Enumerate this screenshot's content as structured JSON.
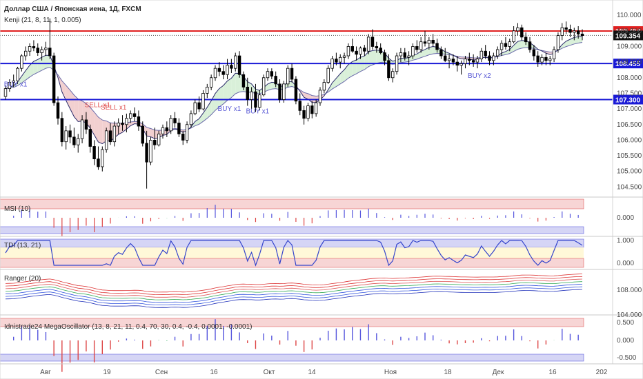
{
  "chart_data": {
    "type": "candlestick",
    "title": "Доллар США / Японская иена, 1Д, FXCM",
    "indicator_label": "Kenji (21, 8, 11, 1, 0.005)",
    "x_ticks": [
      "Авг",
      "19",
      "Сен",
      "16",
      "Окт",
      "14",
      "Ноя",
      "18",
      "Дек",
      "16",
      "202"
    ],
    "y_ticks": [
      "104.500",
      "105.000",
      "105.500",
      "106.000",
      "106.500",
      "107.000",
      "107.500",
      "108.000",
      "108.500",
      "109.000",
      "109.500",
      "110.000"
    ],
    "ylim": [
      104.2,
      110.4
    ],
    "levels": [
      {
        "value": 109.494,
        "label": "109.494",
        "color": "#e02020"
      },
      {
        "value": 108.455,
        "label": "108.455",
        "color": "#1a1ad6"
      },
      {
        "value": 107.3,
        "label": "107.300",
        "color": "#1a1ad6"
      }
    ],
    "last_price": {
      "value": 109.354,
      "label": "109.354"
    },
    "signals": [
      {
        "text": "BUY x1",
        "at": 2,
        "price": 107.72,
        "color": "#5a5ad6"
      },
      {
        "text": "SELL x1",
        "at": 22,
        "price": 107.06,
        "color": "#e05050"
      },
      {
        "text": "SELL x1",
        "at": 26,
        "price": 106.98,
        "color": "#e05050"
      },
      {
        "text": "BUY x1",
        "at": 55,
        "price": 106.94,
        "color": "#5a5ad6"
      },
      {
        "text": "BUY x1",
        "at": 62,
        "price": 106.86,
        "color": "#5a5ad6"
      },
      {
        "text": "BUY x2",
        "at": 117,
        "price": 108.0,
        "color": "#5a5ad6"
      }
    ],
    "candles": [
      [
        107.4,
        107.75,
        107.3,
        107.65
      ],
      [
        107.65,
        107.95,
        107.55,
        107.85
      ],
      [
        107.85,
        108.1,
        107.7,
        107.9
      ],
      [
        107.9,
        108.35,
        107.8,
        108.3
      ],
      [
        108.3,
        108.75,
        108.2,
        108.7
      ],
      [
        108.7,
        109.0,
        108.55,
        108.85
      ],
      [
        108.85,
        109.1,
        108.7,
        109.0
      ],
      [
        109.0,
        109.2,
        108.85,
        108.95
      ],
      [
        108.95,
        109.1,
        108.7,
        108.8
      ],
      [
        108.8,
        109.0,
        108.55,
        108.9
      ],
      [
        108.9,
        109.15,
        108.7,
        108.95
      ],
      [
        108.95,
        109.9,
        108.6,
        108.7
      ],
      [
        108.7,
        108.8,
        107.1,
        107.2
      ],
      [
        107.2,
        107.4,
        106.5,
        106.7
      ],
      [
        106.7,
        106.9,
        105.8,
        105.95
      ],
      [
        105.95,
        106.45,
        105.7,
        106.3
      ],
      [
        106.3,
        106.5,
        105.9,
        106.1
      ],
      [
        106.1,
        106.4,
        105.75,
        105.85
      ],
      [
        105.85,
        106.2,
        105.6,
        106.05
      ],
      [
        106.05,
        106.8,
        105.9,
        106.65
      ],
      [
        106.65,
        106.9,
        106.2,
        106.35
      ],
      [
        106.35,
        106.5,
        105.6,
        105.8
      ],
      [
        105.8,
        106.0,
        105.2,
        105.4
      ],
      [
        105.4,
        105.8,
        105.05,
        105.15
      ],
      [
        105.15,
        105.8,
        105.0,
        105.7
      ],
      [
        105.7,
        106.4,
        105.6,
        106.3
      ],
      [
        106.3,
        106.55,
        105.85,
        105.95
      ],
      [
        105.95,
        106.6,
        105.8,
        106.45
      ],
      [
        106.45,
        106.7,
        106.2,
        106.55
      ],
      [
        106.55,
        106.8,
        106.3,
        106.5
      ],
      [
        106.5,
        106.85,
        106.25,
        106.7
      ],
      [
        106.7,
        106.95,
        106.55,
        106.85
      ],
      [
        106.85,
        107.05,
        106.6,
        106.75
      ],
      [
        106.75,
        106.95,
        106.3,
        106.45
      ],
      [
        106.45,
        106.6,
        105.8,
        105.9
      ],
      [
        105.9,
        106.3,
        104.45,
        105.3
      ],
      [
        105.3,
        106.1,
        105.2,
        106.0
      ],
      [
        106.0,
        106.4,
        105.7,
        105.85
      ],
      [
        105.85,
        106.3,
        105.8,
        106.2
      ],
      [
        106.2,
        106.5,
        106.05,
        106.4
      ],
      [
        106.4,
        106.6,
        106.1,
        106.3
      ],
      [
        106.3,
        106.8,
        106.2,
        106.7
      ],
      [
        106.7,
        106.9,
        106.4,
        106.55
      ],
      [
        106.55,
        106.7,
        106.1,
        106.2
      ],
      [
        106.2,
        106.3,
        105.85,
        106.0
      ],
      [
        106.0,
        106.6,
        105.9,
        106.5
      ],
      [
        106.5,
        106.95,
        106.4,
        106.85
      ],
      [
        106.85,
        107.3,
        106.8,
        107.2
      ],
      [
        107.2,
        107.4,
        106.9,
        107.0
      ],
      [
        107.0,
        107.6,
        106.95,
        107.5
      ],
      [
        107.5,
        107.8,
        107.35,
        107.7
      ],
      [
        107.7,
        108.1,
        107.6,
        108.0
      ],
      [
        108.0,
        108.4,
        107.9,
        108.3
      ],
      [
        108.3,
        108.5,
        108.05,
        108.2
      ],
      [
        108.2,
        108.4,
        107.95,
        108.1
      ],
      [
        108.1,
        108.6,
        107.95,
        108.4
      ],
      [
        108.4,
        108.6,
        108.15,
        108.3
      ],
      [
        108.3,
        108.8,
        108.2,
        108.7
      ],
      [
        108.7,
        108.85,
        108.0,
        108.1
      ],
      [
        108.1,
        108.2,
        107.6,
        107.7
      ],
      [
        107.7,
        108.0,
        107.1,
        107.3
      ],
      [
        107.3,
        107.7,
        107.0,
        107.55
      ],
      [
        107.55,
        107.8,
        106.9,
        107.05
      ],
      [
        107.05,
        107.6,
        106.95,
        107.45
      ],
      [
        107.45,
        108.1,
        107.4,
        108.0
      ],
      [
        108.0,
        108.3,
        107.9,
        108.2
      ],
      [
        108.2,
        108.3,
        107.95,
        108.05
      ],
      [
        108.05,
        108.2,
        107.7,
        107.8
      ],
      [
        107.8,
        107.95,
        107.2,
        107.3
      ],
      [
        107.3,
        107.9,
        107.2,
        107.8
      ],
      [
        107.8,
        108.4,
        107.7,
        108.3
      ],
      [
        108.3,
        108.45,
        107.85,
        107.95
      ],
      [
        107.95,
        108.05,
        107.15,
        107.25
      ],
      [
        107.25,
        107.5,
        106.8,
        106.95
      ],
      [
        106.95,
        107.1,
        106.5,
        106.7
      ],
      [
        106.7,
        107.2,
        106.6,
        107.1
      ],
      [
        107.1,
        107.25,
        106.7,
        106.85
      ],
      [
        106.85,
        107.3,
        106.75,
        107.2
      ],
      [
        107.2,
        107.7,
        107.1,
        107.6
      ],
      [
        107.6,
        107.95,
        107.5,
        107.85
      ],
      [
        107.85,
        108.4,
        107.8,
        108.3
      ],
      [
        108.3,
        108.7,
        108.2,
        108.6
      ],
      [
        108.6,
        108.8,
        108.4,
        108.5
      ],
      [
        108.5,
        108.75,
        108.3,
        108.65
      ],
      [
        108.65,
        108.8,
        108.45,
        108.7
      ],
      [
        108.7,
        109.1,
        108.6,
        109.0
      ],
      [
        109.0,
        109.25,
        108.8,
        108.85
      ],
      [
        108.85,
        109.0,
        108.55,
        108.75
      ],
      [
        108.75,
        109.0,
        108.6,
        108.95
      ],
      [
        108.95,
        109.05,
        108.7,
        108.85
      ],
      [
        108.85,
        109.4,
        108.75,
        109.3
      ],
      [
        109.3,
        109.55,
        108.9,
        109.0
      ],
      [
        109.0,
        109.15,
        108.8,
        108.95
      ],
      [
        108.95,
        109.1,
        108.75,
        108.8
      ],
      [
        108.8,
        108.9,
        108.4,
        108.55
      ],
      [
        108.55,
        108.75,
        107.9,
        108.0
      ],
      [
        108.0,
        108.3,
        107.85,
        108.2
      ],
      [
        108.2,
        108.8,
        108.1,
        108.7
      ],
      [
        108.7,
        108.95,
        108.5,
        108.8
      ],
      [
        108.8,
        108.95,
        108.55,
        108.65
      ],
      [
        108.65,
        108.85,
        108.4,
        108.7
      ],
      [
        108.7,
        109.1,
        108.6,
        109.0
      ],
      [
        109.0,
        109.2,
        108.8,
        108.9
      ],
      [
        108.9,
        109.3,
        108.8,
        109.15
      ],
      [
        109.15,
        109.5,
        109.0,
        109.1
      ],
      [
        109.1,
        109.3,
        108.9,
        109.2
      ],
      [
        109.2,
        109.4,
        109.0,
        109.1
      ],
      [
        109.1,
        109.25,
        108.8,
        108.9
      ],
      [
        108.9,
        109.0,
        108.6,
        108.7
      ],
      [
        108.7,
        108.95,
        108.5,
        108.55
      ],
      [
        108.55,
        108.75,
        108.3,
        108.6
      ],
      [
        108.6,
        108.75,
        108.4,
        108.5
      ],
      [
        108.5,
        108.7,
        108.2,
        108.4
      ],
      [
        108.4,
        108.55,
        108.1,
        108.45
      ],
      [
        108.45,
        108.7,
        108.3,
        108.6
      ],
      [
        108.6,
        108.8,
        108.4,
        108.55
      ],
      [
        108.55,
        108.75,
        108.35,
        108.5
      ],
      [
        108.5,
        108.7,
        108.3,
        108.6
      ],
      [
        108.6,
        108.95,
        108.5,
        108.85
      ],
      [
        108.85,
        109.05,
        108.6,
        108.7
      ],
      [
        108.7,
        108.85,
        108.4,
        108.55
      ],
      [
        108.55,
        108.8,
        108.4,
        108.7
      ],
      [
        108.7,
        109.0,
        108.6,
        108.9
      ],
      [
        108.9,
        109.2,
        108.7,
        109.1
      ],
      [
        109.1,
        109.3,
        108.9,
        109.0
      ],
      [
        109.0,
        109.25,
        108.85,
        109.15
      ],
      [
        109.15,
        109.65,
        109.1,
        109.5
      ],
      [
        109.5,
        109.75,
        109.35,
        109.6
      ],
      [
        109.6,
        109.7,
        109.2,
        109.3
      ],
      [
        109.3,
        109.45,
        109.05,
        109.15
      ],
      [
        109.15,
        109.3,
        108.8,
        108.9
      ],
      [
        108.9,
        109.05,
        108.55,
        108.7
      ],
      [
        108.7,
        108.85,
        108.35,
        108.5
      ],
      [
        108.5,
        108.75,
        108.4,
        108.65
      ],
      [
        108.65,
        108.8,
        108.4,
        108.55
      ],
      [
        108.55,
        108.7,
        108.4,
        108.6
      ],
      [
        108.6,
        109.0,
        108.5,
        108.9
      ],
      [
        108.9,
        109.45,
        108.8,
        109.35
      ],
      [
        109.35,
        109.75,
        109.2,
        109.6
      ],
      [
        109.6,
        109.8,
        109.4,
        109.55
      ],
      [
        109.55,
        109.7,
        109.3,
        109.45
      ],
      [
        109.45,
        109.6,
        109.2,
        109.5
      ],
      [
        109.5,
        109.65,
        109.25,
        109.4
      ],
      [
        109.4,
        109.55,
        109.2,
        109.35
      ]
    ],
    "panels": [
      {
        "title": "MSI (10)",
        "ticks": [
          "0.000"
        ]
      },
      {
        "title": "TDI (13, 21)",
        "ticks": [
          "1.000",
          "0.000"
        ]
      },
      {
        "title": "Ranger (20)",
        "ticks": [
          "108.000",
          "104.000"
        ]
      },
      {
        "title": "Idnistrade24 MegaOscillator (13, 8, 21, 11, 0.4, 70, 30, 0.4, -0.4, 0.0001, -0.0001)",
        "ticks": [
          "0.500",
          "0.000",
          "-0.500"
        ]
      }
    ],
    "colors": {
      "bull": "#ffffff",
      "bear": "#000000",
      "outline": "#000000",
      "cloud_up": "#d9f0d9",
      "cloud_down": "#f2d0d0",
      "ma_fast": "#2a2a6a",
      "ma_slow": "#6a6aaa",
      "osc_pos": "#5555dd",
      "osc_neg": "#dd4444",
      "osc_flat": "#22aa55",
      "band_red": "#f7d5d5",
      "band_blue": "#d5d5f5",
      "band_yellow": "#fff8d8"
    }
  }
}
